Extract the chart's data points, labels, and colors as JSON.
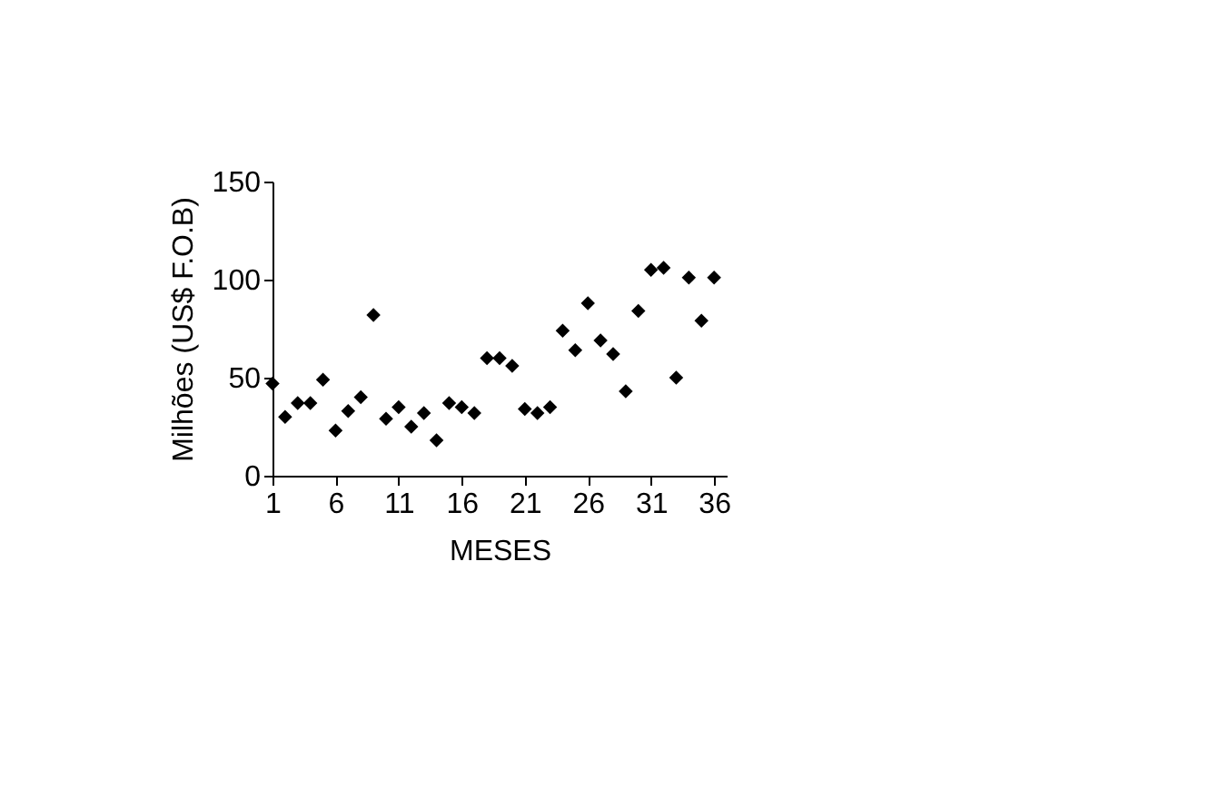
{
  "chart_data": {
    "type": "scatter",
    "xlabel": "MESES",
    "ylabel": "Milhões (US$ F.O.B)",
    "x": [
      1,
      2,
      3,
      4,
      5,
      6,
      7,
      8,
      9,
      10,
      11,
      12,
      13,
      14,
      15,
      16,
      17,
      18,
      19,
      20,
      21,
      22,
      23,
      24,
      25,
      26,
      27,
      28,
      29,
      30,
      31,
      32,
      33,
      34,
      35,
      36
    ],
    "series": [
      {
        "color": "#000000",
        "values": [
          47,
          30,
          37,
          37,
          49,
          23,
          33,
          40,
          82,
          29,
          35,
          25,
          32,
          18,
          37,
          35,
          32,
          60,
          60,
          56,
          34,
          32,
          35,
          74,
          64,
          88,
          69,
          62,
          43,
          84,
          105,
          106,
          50,
          101,
          79,
          101
        ]
      }
    ],
    "xlim": [
      1,
      37
    ],
    "xticks": [
      1,
      6,
      11,
      16,
      21,
      26,
      31,
      36
    ],
    "ylim": [
      0,
      150
    ],
    "yticks": [
      0,
      50,
      100,
      150
    ],
    "marker": "diamond",
    "grid": false
  }
}
